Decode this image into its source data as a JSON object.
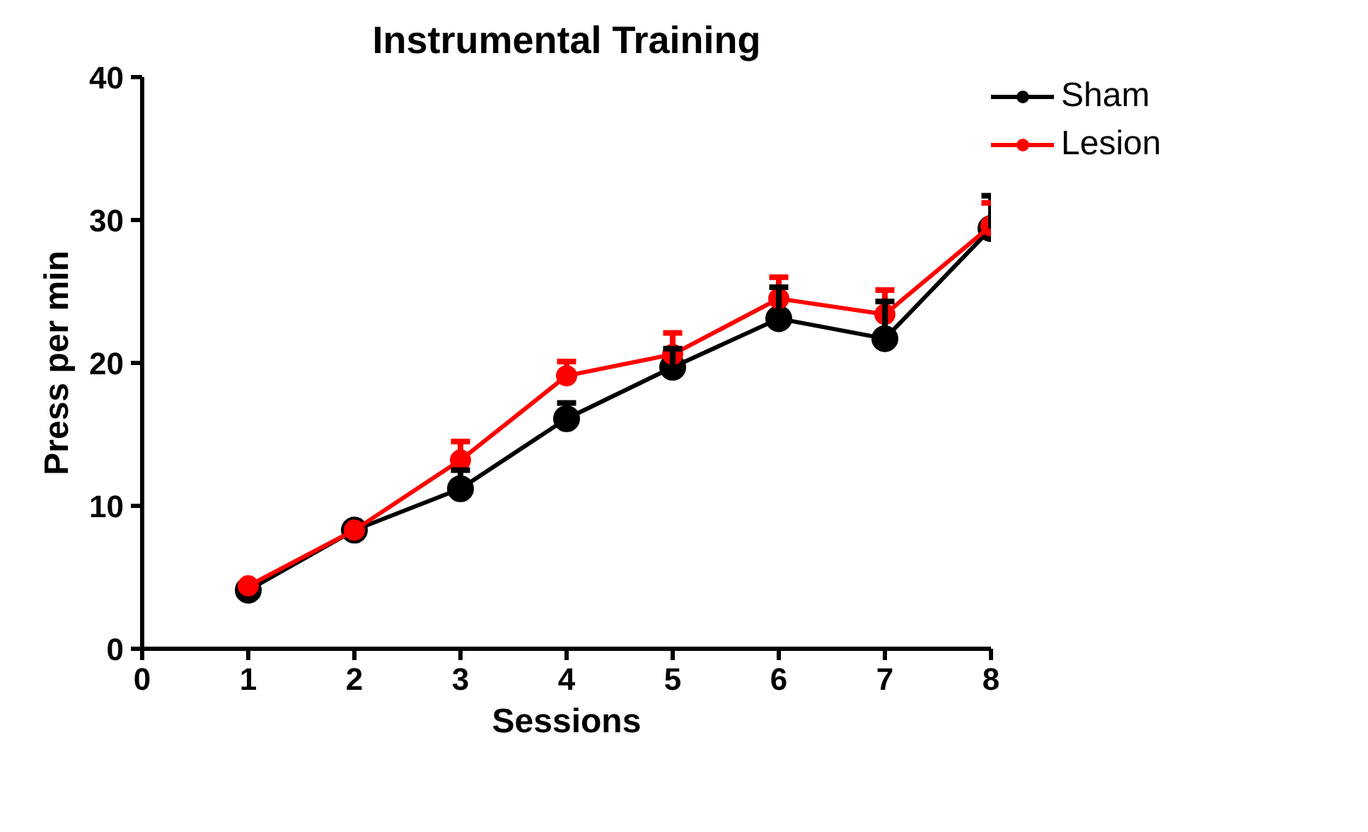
{
  "chart_data": {
    "type": "line",
    "title": "Instrumental Training",
    "xlabel": "Sessions",
    "ylabel": "Press per min",
    "x": [
      1,
      2,
      3,
      4,
      5,
      6,
      7,
      8
    ],
    "series": [
      {
        "name": "Sham",
        "color": "#000000",
        "values": [
          4.1,
          8.3,
          11.2,
          16.1,
          19.7,
          23.1,
          21.7,
          29.4
        ],
        "errors": [
          null,
          null,
          [
            11.2,
            12.5
          ],
          [
            16.1,
            17.2
          ],
          [
            19.7,
            21.0
          ],
          [
            23.1,
            25.3
          ],
          [
            21.7,
            24.3
          ],
          [
            29.4,
            31.7
          ]
        ]
      },
      {
        "name": "Lesion",
        "color": "#ff0000",
        "values": [
          4.4,
          8.3,
          13.2,
          19.1,
          20.6,
          24.5,
          23.4,
          29.6
        ],
        "errors": [
          null,
          null,
          [
            13.2,
            14.5
          ],
          [
            19.1,
            20.1
          ],
          [
            20.6,
            22.1
          ],
          [
            24.5,
            26.0
          ],
          [
            23.4,
            25.1
          ],
          [
            29.6,
            31.2
          ]
        ]
      }
    ],
    "xlim": [
      0,
      8
    ],
    "xticks": [
      0,
      1,
      2,
      3,
      4,
      5,
      6,
      7,
      8
    ],
    "ylim": [
      0,
      40
    ],
    "yticks": [
      0,
      10,
      20,
      30,
      40
    ],
    "grid": false,
    "legend": "top right",
    "marker": "circle",
    "line_style": "solid"
  }
}
